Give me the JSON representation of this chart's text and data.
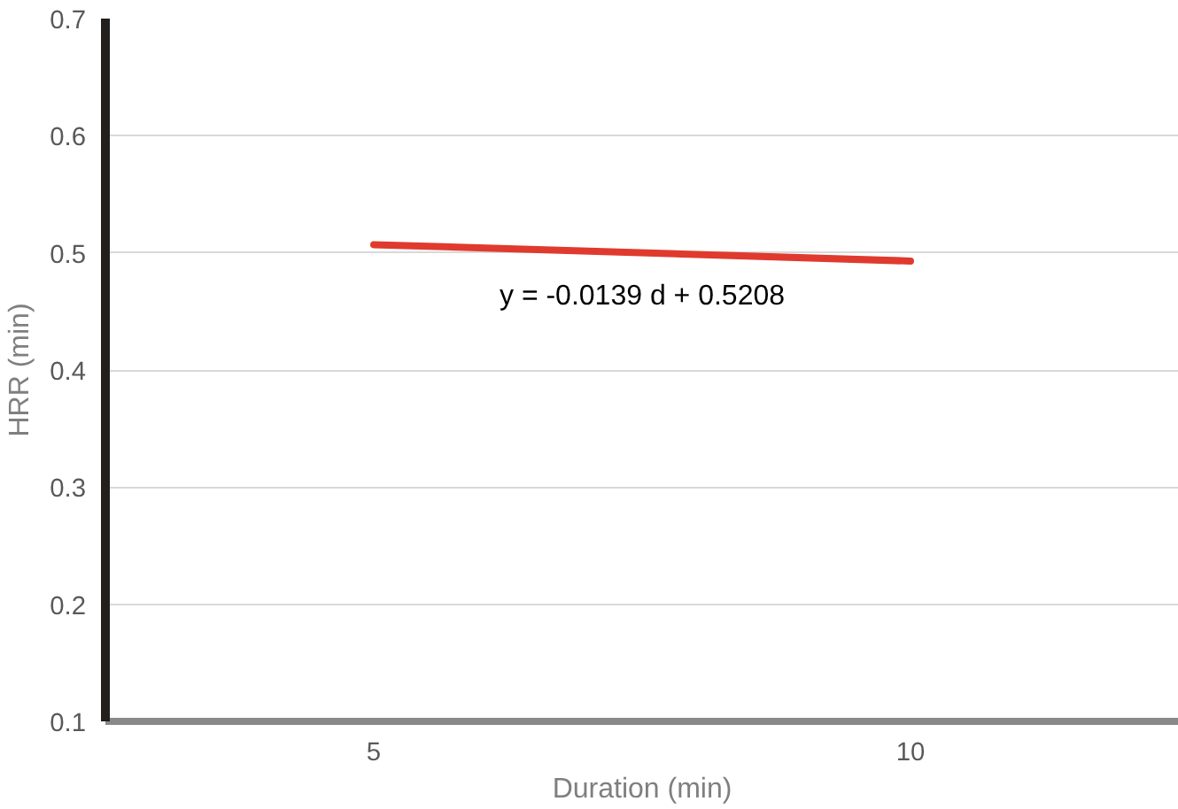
{
  "chart_data": {
    "type": "line",
    "xlabel": "Duration (min)",
    "ylabel": "HRR (min)",
    "categories": [
      "5",
      "10"
    ],
    "series": [
      {
        "color": "#e03a2e",
        "values": [
          0.507,
          0.493
        ]
      }
    ],
    "ylim": [
      0.1,
      0.7
    ],
    "yticks": [
      0.1,
      0.2,
      0.3,
      0.4,
      0.5,
      0.6,
      0.7
    ],
    "grid": "y",
    "annotations": [
      "y = -0.0139 d + 0.5208"
    ]
  }
}
